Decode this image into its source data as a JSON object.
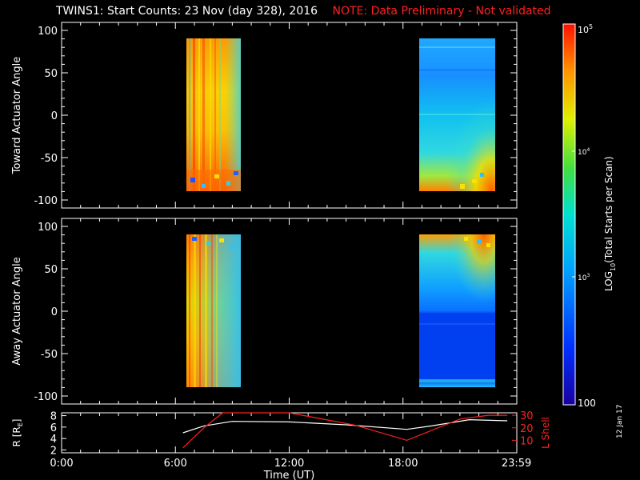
{
  "title": "TWINS1: Start Counts: 23 Nov (day 328), 2016",
  "note": "NOTE: Data Preliminary - Not validated",
  "side_date": "12 Jan 17",
  "colors": {
    "background": "#000000",
    "foreground": "#ffffff",
    "note": "#ff2020",
    "lshell_line": "#ff2020",
    "r_line": "#ffffff"
  },
  "chart_data": [
    {
      "type": "heatmap",
      "panel": "toward",
      "ylabel": "Toward Actuator Angle",
      "ylim": [
        -100,
        100
      ],
      "yticks": [
        100,
        50,
        0,
        -50,
        -100
      ],
      "xlim_hours": [
        0,
        24
      ],
      "data_blocks_hours": [
        [
          6.5,
          9.5
        ],
        [
          18.5,
          23.0
        ]
      ],
      "data_angle_range": [
        -90,
        90
      ],
      "colormap": "rainbow log10 counts"
    },
    {
      "type": "heatmap",
      "panel": "away",
      "ylabel": "Away Actuator Angle",
      "ylim": [
        -100,
        100
      ],
      "yticks": [
        100,
        50,
        0,
        -50,
        -100
      ],
      "xlim_hours": [
        0,
        24
      ],
      "data_blocks_hours": [
        [
          6.5,
          9.5
        ],
        [
          18.5,
          23.0
        ]
      ],
      "data_angle_range": [
        -90,
        90
      ],
      "colormap": "rainbow log10 counts"
    },
    {
      "type": "line",
      "panel": "ephemeris",
      "ylabel_left": "R [R",
      "ylabel_left_sub": "E",
      "ylabel_left_end": "]",
      "ylabel_right": "L Shell",
      "xlabel": "Time (UT)",
      "xticks": [
        "0:00",
        "6:00",
        "12:00",
        "18:00",
        "23:59"
      ],
      "xtick_hours": [
        0,
        6,
        12,
        18,
        23.983
      ],
      "ylim_left": [
        1.5,
        8.5
      ],
      "yticks_left": [
        2,
        4,
        6,
        8
      ],
      "ylim_right": [
        0,
        32
      ],
      "yticks_right": [
        10,
        20,
        30
      ],
      "series": [
        {
          "name": "R",
          "x": [
            6.4,
            7.5,
            9.0,
            12.0,
            15.0,
            18.2,
            19.5,
            21.5,
            23.5
          ],
          "y": [
            5.0,
            6.2,
            7.0,
            6.9,
            6.4,
            5.6,
            6.2,
            7.3,
            7.1
          ]
        },
        {
          "name": "L Shell",
          "x": [
            6.4,
            7.5,
            8.5,
            12.0,
            15.5,
            18.2,
            21.0,
            22.5,
            23.5
          ],
          "y": [
            4,
            20,
            32,
            32,
            22,
            10,
            27,
            30,
            30
          ]
        }
      ]
    }
  ],
  "colorbar": {
    "label_main": "LOG",
    "label_sub": "10",
    "label_rest": "(Total Starts per Scan)",
    "tick_top_base": "10",
    "tick_top_exp": "5",
    "tick_mid_base": "10",
    "tick_mid_exp": "4",
    "tick_low_base": "10",
    "tick_low_exp": "3",
    "tick_bottom": "100"
  }
}
